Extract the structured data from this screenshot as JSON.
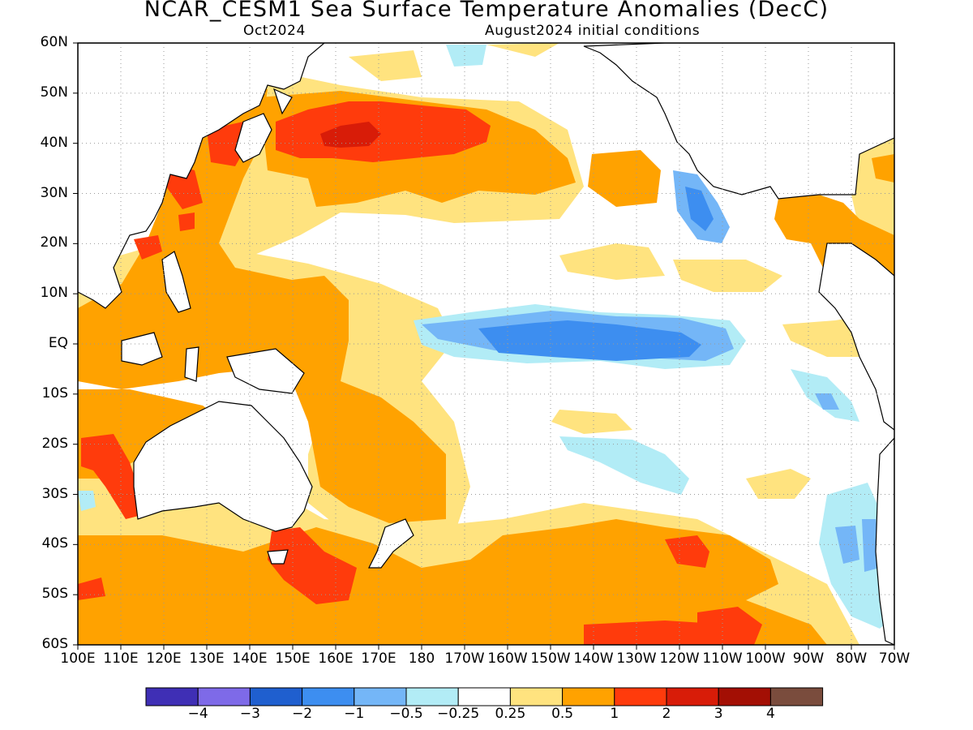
{
  "title": "NCAR_CESM1 Sea Surface Temperature Anomalies (DecC)",
  "valid_month": "Oct2024",
  "initial_conditions": "August2024 initial conditions",
  "lat_labels": [
    "60N",
    "50N",
    "40N",
    "30N",
    "20N",
    "10N",
    "EQ",
    "10S",
    "20S",
    "30S",
    "40S",
    "50S",
    "60S"
  ],
  "lon_labels": [
    "100E",
    "110E",
    "120E",
    "130E",
    "140E",
    "150E",
    "160E",
    "170E",
    "180",
    "170W",
    "160W",
    "150W",
    "140W",
    "130W",
    "120W",
    "110W",
    "100W",
    "90W",
    "80W",
    "70W"
  ],
  "colorbar": {
    "colors": [
      "#3f2fb5",
      "#7e6ae8",
      "#1f5fcf",
      "#3d8ef0",
      "#74b6f7",
      "#b2ecf6",
      "#ffffff",
      "#ffe37f",
      "#ffa200",
      "#ff3b0c",
      "#d81c08",
      "#a30f04",
      "#7a4c3d"
    ],
    "labels": [
      "−4",
      "−3",
      "−2",
      "−1",
      "−0.5",
      "−0.25",
      "0.25",
      "0.5",
      "1",
      "2",
      "3",
      "4"
    ]
  }
}
